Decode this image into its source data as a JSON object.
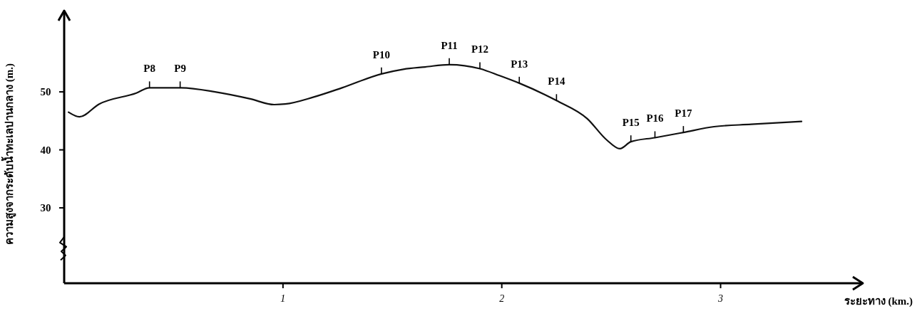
{
  "chart_data": {
    "type": "line",
    "xlabel": "ระยะทาง (km.)",
    "ylabel": "ความสูงจากระดับน้ำทะเลปานกลาง (m.)",
    "xlim": [
      0,
      3.65
    ],
    "ylim": [
      17,
      64
    ],
    "xticks": [
      1,
      2,
      3
    ],
    "yticks": [
      30,
      40,
      50
    ],
    "grid": false,
    "marker": "none",
    "line_style": "solid",
    "series": [
      {
        "color": "#111111",
        "x": [
          0.02,
          0.07,
          0.16,
          0.33,
          0.39,
          0.53,
          0.69,
          0.85,
          0.96,
          1.01,
          1.14,
          1.27,
          1.45,
          1.55,
          1.65,
          1.76,
          1.9,
          1.99,
          2.08,
          2.25,
          2.39,
          2.48,
          2.54,
          2.59,
          2.7,
          2.83,
          2.97,
          3.14,
          3.37
        ],
        "values": [
          46.5,
          45.7,
          47.9,
          49.8,
          50.7,
          50.7,
          50,
          48.8,
          47.8,
          47.9,
          49.1,
          50.7,
          53.1,
          53.9,
          54.3,
          54.7,
          54,
          52.8,
          51.5,
          48.5,
          45.4,
          41.7,
          40.2,
          41.4,
          42.1,
          43,
          44,
          44.4,
          44.9
        ]
      }
    ],
    "annotations": [
      {
        "text": "P8",
        "x": 0.39,
        "y": 50.7
      },
      {
        "text": "P9",
        "x": 0.53,
        "y": 50.7
      },
      {
        "text": "P10",
        "x": 1.45,
        "y": 53.1
      },
      {
        "text": "P11",
        "x": 1.76,
        "y": 54.7
      },
      {
        "text": "P12",
        "x": 1.9,
        "y": 54
      },
      {
        "text": "P13",
        "x": 2.08,
        "y": 51.5
      },
      {
        "text": "P14",
        "x": 2.25,
        "y": 48.5
      },
      {
        "text": "P15",
        "x": 2.59,
        "y": 41.4
      },
      {
        "text": "P16",
        "x": 2.7,
        "y": 42.1
      },
      {
        "text": "P17",
        "x": 2.83,
        "y": 43
      }
    ]
  }
}
